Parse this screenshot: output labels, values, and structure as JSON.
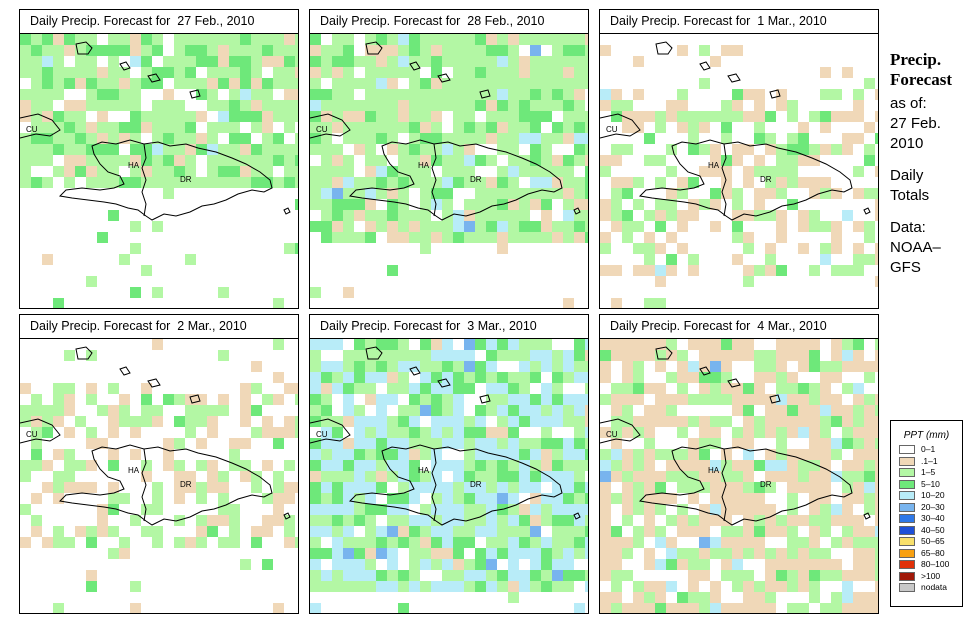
{
  "panels": [
    {
      "title": "Daily Precip. Forecast for  27 Feb., 2010",
      "date": "27 Feb., 2010"
    },
    {
      "title": "Daily Precip. Forecast for  28 Feb., 2010",
      "date": "28 Feb., 2010"
    },
    {
      "title": "Daily Precip. Forecast for  1 Mar., 2010",
      "date": "1 Mar., 2010"
    },
    {
      "title": "Daily Precip. Forecast for  2 Mar., 2010",
      "date": "2 Mar., 2010"
    },
    {
      "title": "Daily Precip. Forecast for  3 Mar., 2010",
      "date": "3 Mar., 2010"
    },
    {
      "title": "Daily Precip. Forecast for  4 Mar., 2010",
      "date": "4 Mar., 2010"
    }
  ],
  "map_labels": {
    "cuba": "CU",
    "haiti": "HA",
    "dominican_republic": "DR"
  },
  "side": {
    "title_line1": "Precip.",
    "title_line2": "Forecast",
    "asof_line1": "as of:",
    "asof_line2": "27 Feb.",
    "asof_line3": "2010",
    "totals_line1": "Daily",
    "totals_line2": "Totals",
    "data_line1": "Data:",
    "data_line2": "NOAA–",
    "data_line3": "GFS"
  },
  "legend": {
    "title": "PPT (mm)",
    "items": [
      {
        "label": "0–1",
        "color": "#ffffff"
      },
      {
        "label": ".1–1",
        "color": "#f0d8b8"
      },
      {
        "label": "1–5",
        "color": "#b3f7a4"
      },
      {
        "label": "5–10",
        "color": "#6ee87a"
      },
      {
        "label": "10–20",
        "color": "#b8ecf8"
      },
      {
        "label": "20–30",
        "color": "#78b4ee"
      },
      {
        "label": "30–40",
        "color": "#2e78e8"
      },
      {
        "label": "40–50",
        "color": "#1e50d8"
      },
      {
        "label": "50–65",
        "color": "#f8e06c"
      },
      {
        "label": "65–80",
        "color": "#f8a010"
      },
      {
        "label": "80–100",
        "color": "#e03008"
      },
      {
        "label": ">100",
        "color": "#a01808"
      },
      {
        "label": "nodata",
        "color": "#c8c8c8"
      }
    ]
  }
}
